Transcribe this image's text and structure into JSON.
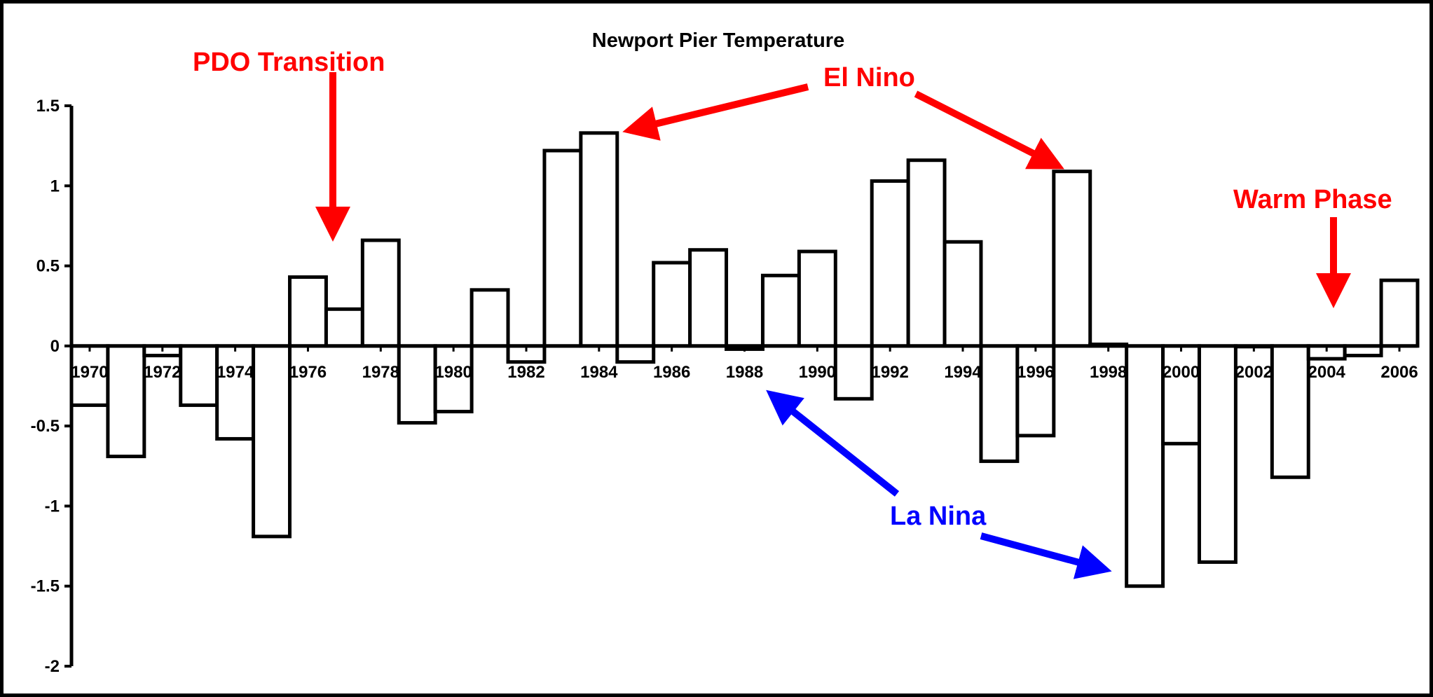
{
  "chart_data": {
    "type": "bar",
    "title": "Newport Pier Temperature",
    "xlabel": "",
    "ylabel": "",
    "ylim": [
      -2,
      1.5
    ],
    "yticks": [
      1.5,
      1,
      0.5,
      0,
      -0.5,
      -1,
      -1.5,
      -2
    ],
    "ytick_labels": [
      "1.5",
      "1",
      "0.5",
      "0",
      "-0.5",
      "-1",
      "-1.5",
      "-2"
    ],
    "x": [
      1970,
      1971,
      1972,
      1973,
      1974,
      1975,
      1976,
      1977,
      1978,
      1979,
      1980,
      1981,
      1982,
      1983,
      1984,
      1985,
      1986,
      1987,
      1988,
      1989,
      1990,
      1991,
      1992,
      1993,
      1994,
      1995,
      1996,
      1997,
      1998,
      1999,
      2000,
      2001,
      2002,
      2003,
      2004,
      2005,
      2006
    ],
    "xtick_labels": [
      "1970",
      "1972",
      "1974",
      "1976",
      "1978",
      "1980",
      "1982",
      "1984",
      "1986",
      "1988",
      "1990",
      "1992",
      "1994",
      "1996",
      "1998",
      "2000",
      "2002",
      "2004",
      "2006"
    ],
    "values": [
      -0.37,
      -0.69,
      -0.06,
      -0.37,
      -0.58,
      -1.19,
      0.43,
      0.23,
      0.66,
      -0.48,
      -0.41,
      0.35,
      -0.1,
      1.22,
      1.33,
      -0.1,
      0.52,
      0.6,
      -0.02,
      0.44,
      0.59,
      -0.33,
      1.03,
      1.16,
      0.65,
      -0.72,
      -0.56,
      1.09,
      0.01,
      -1.5,
      -0.61,
      -1.35,
      0,
      -0.82,
      -0.08,
      -0.06,
      0.41
    ],
    "grid": false,
    "legend": "none",
    "bar_fill": "#ffffff",
    "bar_edge": "#000000",
    "annotations": [
      {
        "text": "PDO Transition",
        "color": "#ff0000",
        "target_year": 1977
      },
      {
        "text": "El Nino",
        "color": "#ff0000",
        "targets": [
          1984,
          1997
        ]
      },
      {
        "text": "Warm Phase",
        "color": "#ff0000",
        "target_year": 2004
      },
      {
        "text": "La Nina",
        "color": "#0000ff",
        "targets": [
          1988,
          1999
        ]
      }
    ]
  }
}
